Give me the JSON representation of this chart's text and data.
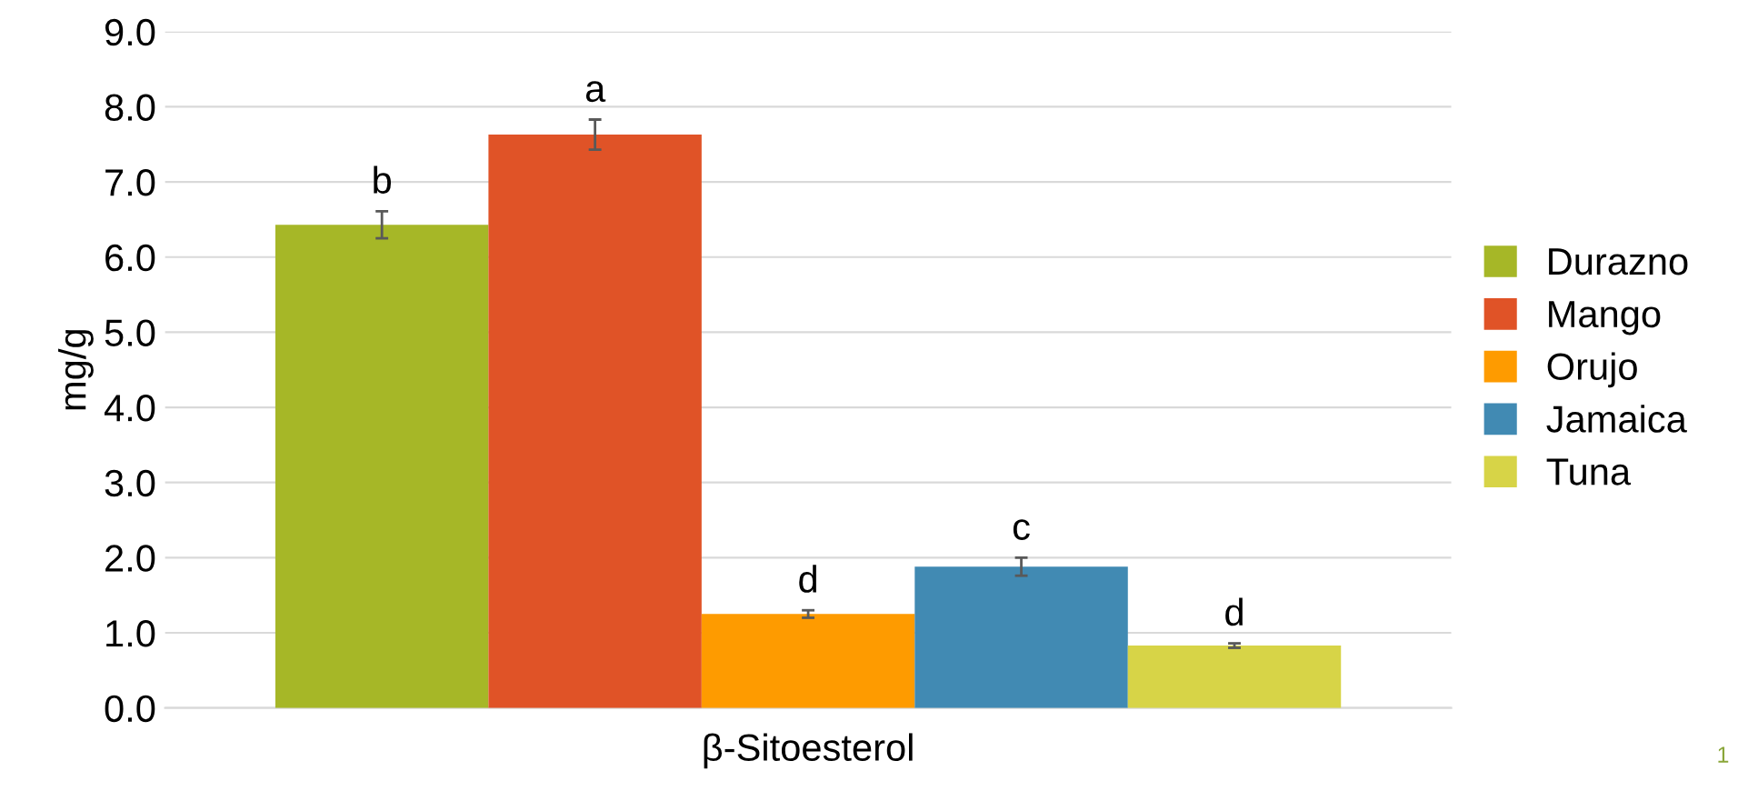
{
  "chart_data": {
    "type": "bar",
    "ylabel": "mg/g",
    "categories": [
      "β-Sitoesterol"
    ],
    "series": [
      {
        "name": "Durazno",
        "color": "#a6b727",
        "values": [
          6.43
        ],
        "errors": [
          0.18
        ]
      },
      {
        "name": "Mango",
        "color": "#e05327",
        "values": [
          7.63
        ],
        "errors": [
          0.2
        ]
      },
      {
        "name": "Orujo",
        "color": "#fe9b00",
        "values": [
          1.25
        ],
        "errors": [
          0.05
        ]
      },
      {
        "name": "Jamaica",
        "color": "#418ab3",
        "values": [
          1.88
        ],
        "errors": [
          0.12
        ]
      },
      {
        "name": "Tuna",
        "color": "#d7d447",
        "values": [
          0.83
        ],
        "errors": [
          0.03
        ]
      }
    ],
    "annotations": [
      "b",
      "a",
      "d",
      "c",
      "d",
      "1"
    ],
    "ylim": [
      0,
      9
    ],
    "yticks": [
      {
        "value": 0,
        "label": "0.0"
      },
      {
        "value": 1,
        "label": "1.0"
      },
      {
        "value": 2,
        "label": "2.0"
      },
      {
        "value": 3,
        "label": "3.0"
      },
      {
        "value": 4,
        "label": "4.0"
      },
      {
        "value": 5,
        "label": "5.0"
      },
      {
        "value": 6,
        "label": "6.0"
      },
      {
        "value": 7,
        "label": "7.0"
      },
      {
        "value": 8,
        "label": "8.0"
      },
      {
        "value": 9,
        "label": "9.0"
      }
    ],
    "grid": "y",
    "legend": "right"
  }
}
